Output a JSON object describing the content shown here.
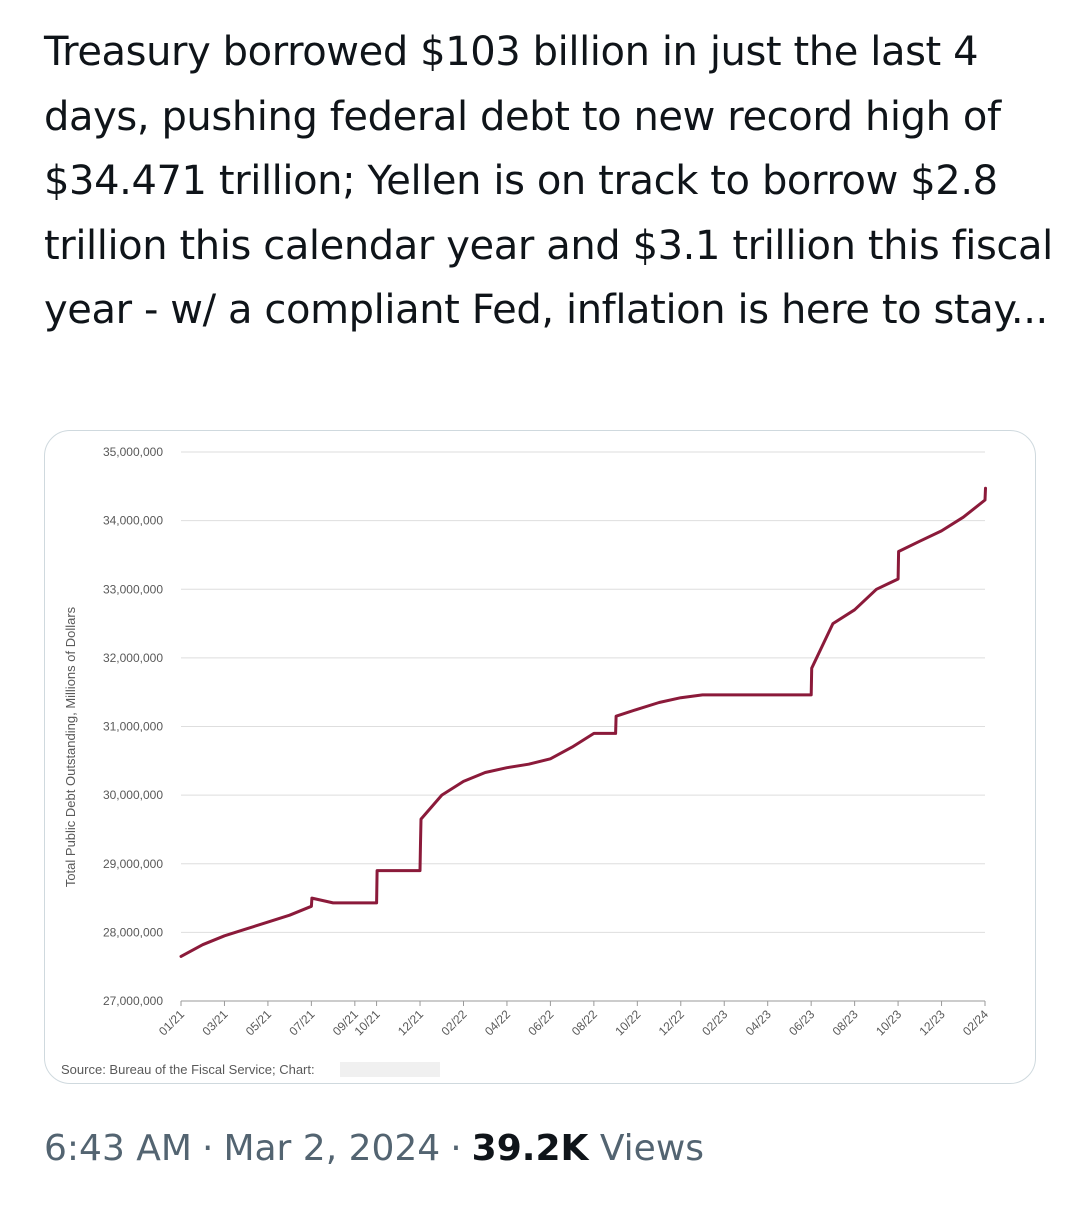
{
  "tweet": {
    "text": "Treasury borrowed $103 billion in just the last 4 days, pushing federal debt to new record high of $34.471 trillion; Yellen is on track to borrow $2.8 trillion this calendar year and $3.1 trillion this fiscal year - w/ a compliant Fed, inflation is here to stay...",
    "time": "6:43 AM",
    "date": "Mar 2, 2024",
    "views_count": "39.2K",
    "views_label": "Views",
    "separator": "·"
  },
  "chart_data": {
    "type": "line",
    "ylabel": "Total Public Debt Outstanding, Millions of Dollars",
    "source": "Source: Bureau of the Fiscal Service; Chart:",
    "ylim": [
      27000000,
      35000000
    ],
    "yticks": [
      "35,000,000",
      "34,000,000",
      "33,000,000",
      "32,000,000",
      "31,000,000",
      "30,000,000",
      "29,000,000",
      "28,000,000",
      "27,000,000"
    ],
    "ytick_values": [
      35000000,
      34000000,
      33000000,
      32000000,
      31000000,
      30000000,
      29000000,
      28000000,
      27000000
    ],
    "xticks": [
      "01/21",
      "03/21",
      "05/21",
      "07/21",
      "09/21",
      "10/21",
      "12/21",
      "02/22",
      "04/22",
      "06/22",
      "08/22",
      "10/22",
      "12/22",
      "02/23",
      "04/23",
      "06/23",
      "08/23",
      "10/23",
      "12/23",
      "02/24"
    ],
    "grid": true,
    "line_color": "#8b1a3a",
    "series": [
      {
        "x": [
          "01/21",
          "02/21",
          "03/21",
          "04/21",
          "05/21",
          "06/21",
          "07/21",
          "07/21",
          "08/21",
          "09/21",
          "10/21",
          "10/21",
          "11/21",
          "12/21",
          "12/21",
          "12/21",
          "01/22",
          "02/22",
          "03/22",
          "04/22",
          "05/22",
          "06/22",
          "07/22",
          "08/22",
          "09/22",
          "09/22",
          "10/22",
          "11/22",
          "12/22",
          "01/23",
          "02/23",
          "03/23",
          "04/23",
          "05/23",
          "06/23",
          "06/23",
          "07/23",
          "08/23",
          "09/23",
          "10/23",
          "10/23",
          "11/23",
          "12/23",
          "01/24",
          "02/24",
          "02/24"
        ],
        "values": [
          27650000,
          27820000,
          27950000,
          28050000,
          28150000,
          28250000,
          28380000,
          28500000,
          28430000,
          28430000,
          28430000,
          28900000,
          28900000,
          28900000,
          29300000,
          29650000,
          30000000,
          30200000,
          30330000,
          30400000,
          30450000,
          30530000,
          30700000,
          30900000,
          30900000,
          31150000,
          31250000,
          31350000,
          31420000,
          31460000,
          31460000,
          31460000,
          31460000,
          31460000,
          31460000,
          31850000,
          32500000,
          32700000,
          33000000,
          33150000,
          33550000,
          33700000,
          33850000,
          34050000,
          34300000,
          34471000
        ]
      }
    ]
  }
}
